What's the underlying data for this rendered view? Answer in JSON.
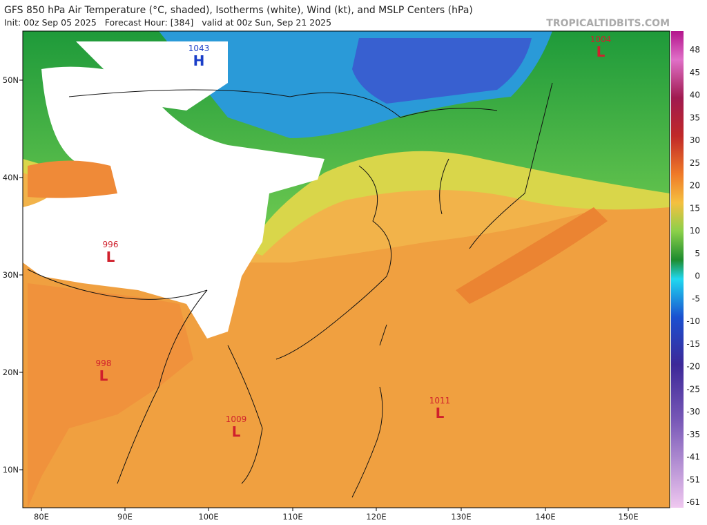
{
  "header": {
    "title": "GFS 850 hPa Air Temperature (°C, shaded), Isotherms (white), Wind (kt), and MSLP Centers (hPa)",
    "subtitle": "Init: 00z Sep 05 2025   Forecast Hour: [384]   valid at 00z Sun, Sep 21 2025",
    "site": "TROPICALTIDBITS.COM"
  },
  "map": {
    "lat_labels": [
      "50N",
      "40N",
      "30N",
      "20N",
      "10N"
    ],
    "lon_labels": [
      "80E",
      "90E",
      "100E",
      "110E",
      "120E",
      "130E",
      "140E",
      "150E"
    ],
    "centers": [
      {
        "pressure": "1043",
        "symbol": "H"
      },
      {
        "pressure": "1004",
        "symbol": "L"
      },
      {
        "pressure": "996",
        "symbol": "L"
      },
      {
        "pressure": "998",
        "symbol": "L"
      },
      {
        "pressure": "1009",
        "symbol": "L"
      },
      {
        "pressure": "1011",
        "symbol": "L"
      }
    ]
  },
  "colorbar": {
    "labels": [
      "48",
      "45",
      "40",
      "35",
      "30",
      "25",
      "20",
      "15",
      "10",
      "5",
      "0",
      "-5",
      "-10",
      "-15",
      "-20",
      "-25",
      "-30",
      "-35",
      "-41",
      "-51",
      "-61"
    ]
  }
}
